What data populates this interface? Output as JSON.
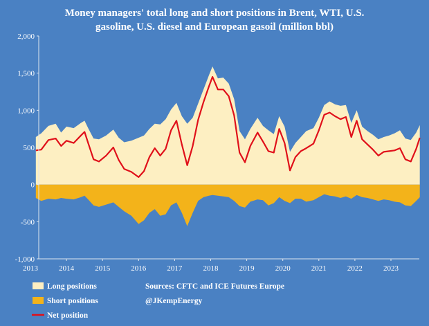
{
  "chart_data": {
    "type": "area",
    "title_lines": [
      "Money managers' total long and short positions in Brent, WTI, U.S.",
      "gasoline, U.S. diesel and European gasoil  (million bbl)"
    ],
    "xlabel": "",
    "ylabel": "",
    "xlim": [
      2013.0,
      2023.95
    ],
    "ylim": [
      -1000,
      2000
    ],
    "y_ticks": [
      "2,000",
      "1,500",
      "1,000",
      "500",
      "0",
      "-500",
      "-1,000"
    ],
    "x_ticks": [
      "2013",
      "2014",
      "2015",
      "2016",
      "2017",
      "2018",
      "2019",
      "2020",
      "2021",
      "2022",
      "2023"
    ],
    "grid": false,
    "legend_position": "bottom-left",
    "colors": {
      "background": "#4a81c3",
      "long": "#fdefc2",
      "short": "#f3b31a",
      "net": "#e0101a"
    },
    "series": [
      {
        "name": "Long positions",
        "style": "area",
        "points": [
          [
            2013.15,
            640
          ],
          [
            2013.3,
            690
          ],
          [
            2013.5,
            790
          ],
          [
            2013.7,
            820
          ],
          [
            2013.85,
            700
          ],
          [
            2014.0,
            780
          ],
          [
            2014.2,
            760
          ],
          [
            2014.4,
            830
          ],
          [
            2014.5,
            860
          ],
          [
            2014.6,
            760
          ],
          [
            2014.75,
            620
          ],
          [
            2014.9,
            610
          ],
          [
            2015.1,
            660
          ],
          [
            2015.3,
            740
          ],
          [
            2015.45,
            630
          ],
          [
            2015.6,
            570
          ],
          [
            2015.8,
            590
          ],
          [
            2016.0,
            630
          ],
          [
            2016.15,
            660
          ],
          [
            2016.3,
            750
          ],
          [
            2016.45,
            820
          ],
          [
            2016.6,
            810
          ],
          [
            2016.75,
            880
          ],
          [
            2016.9,
            1010
          ],
          [
            2017.05,
            1100
          ],
          [
            2017.2,
            920
          ],
          [
            2017.35,
            820
          ],
          [
            2017.5,
            900
          ],
          [
            2017.65,
            1090
          ],
          [
            2017.8,
            1280
          ],
          [
            2017.95,
            1470
          ],
          [
            2018.05,
            1590
          ],
          [
            2018.2,
            1430
          ],
          [
            2018.35,
            1440
          ],
          [
            2018.5,
            1360
          ],
          [
            2018.65,
            1150
          ],
          [
            2018.8,
            720
          ],
          [
            2018.95,
            610
          ],
          [
            2019.1,
            750
          ],
          [
            2019.3,
            900
          ],
          [
            2019.45,
            790
          ],
          [
            2019.6,
            730
          ],
          [
            2019.75,
            680
          ],
          [
            2019.9,
            920
          ],
          [
            2020.05,
            780
          ],
          [
            2020.2,
            440
          ],
          [
            2020.35,
            560
          ],
          [
            2020.5,
            640
          ],
          [
            2020.65,
            720
          ],
          [
            2020.85,
            760
          ],
          [
            2021.0,
            900
          ],
          [
            2021.15,
            1070
          ],
          [
            2021.3,
            1120
          ],
          [
            2021.45,
            1080
          ],
          [
            2021.6,
            1060
          ],
          [
            2021.75,
            1070
          ],
          [
            2021.9,
            830
          ],
          [
            2022.05,
            1000
          ],
          [
            2022.2,
            780
          ],
          [
            2022.35,
            720
          ],
          [
            2022.5,
            670
          ],
          [
            2022.65,
            610
          ],
          [
            2022.8,
            640
          ],
          [
            2022.95,
            660
          ],
          [
            2023.1,
            690
          ],
          [
            2023.25,
            730
          ],
          [
            2023.4,
            620
          ],
          [
            2023.55,
            600
          ],
          [
            2023.7,
            700
          ],
          [
            2023.8,
            800
          ]
        ]
      },
      {
        "name": "Short positions",
        "style": "area",
        "points": [
          [
            2013.15,
            -180
          ],
          [
            2013.3,
            -220
          ],
          [
            2013.5,
            -190
          ],
          [
            2013.7,
            -200
          ],
          [
            2013.85,
            -180
          ],
          [
            2014.0,
            -190
          ],
          [
            2014.2,
            -200
          ],
          [
            2014.4,
            -170
          ],
          [
            2014.5,
            -150
          ],
          [
            2014.6,
            -200
          ],
          [
            2014.75,
            -280
          ],
          [
            2014.9,
            -300
          ],
          [
            2015.1,
            -270
          ],
          [
            2015.3,
            -240
          ],
          [
            2015.45,
            -300
          ],
          [
            2015.6,
            -360
          ],
          [
            2015.8,
            -420
          ],
          [
            2016.0,
            -530
          ],
          [
            2016.15,
            -480
          ],
          [
            2016.3,
            -380
          ],
          [
            2016.45,
            -330
          ],
          [
            2016.6,
            -420
          ],
          [
            2016.75,
            -400
          ],
          [
            2016.9,
            -280
          ],
          [
            2017.05,
            -240
          ],
          [
            2017.2,
            -380
          ],
          [
            2017.35,
            -560
          ],
          [
            2017.5,
            -380
          ],
          [
            2017.65,
            -220
          ],
          [
            2017.8,
            -170
          ],
          [
            2017.95,
            -150
          ],
          [
            2018.05,
            -140
          ],
          [
            2018.2,
            -150
          ],
          [
            2018.35,
            -160
          ],
          [
            2018.5,
            -170
          ],
          [
            2018.65,
            -220
          ],
          [
            2018.8,
            -290
          ],
          [
            2018.95,
            -310
          ],
          [
            2019.1,
            -230
          ],
          [
            2019.3,
            -200
          ],
          [
            2019.45,
            -210
          ],
          [
            2019.6,
            -280
          ],
          [
            2019.75,
            -250
          ],
          [
            2019.9,
            -170
          ],
          [
            2020.05,
            -220
          ],
          [
            2020.2,
            -250
          ],
          [
            2020.35,
            -190
          ],
          [
            2020.5,
            -190
          ],
          [
            2020.65,
            -230
          ],
          [
            2020.85,
            -210
          ],
          [
            2021.0,
            -170
          ],
          [
            2021.15,
            -130
          ],
          [
            2021.3,
            -150
          ],
          [
            2021.45,
            -160
          ],
          [
            2021.6,
            -180
          ],
          [
            2021.75,
            -160
          ],
          [
            2021.9,
            -190
          ],
          [
            2022.05,
            -140
          ],
          [
            2022.2,
            -170
          ],
          [
            2022.35,
            -180
          ],
          [
            2022.5,
            -200
          ],
          [
            2022.65,
            -220
          ],
          [
            2022.8,
            -200
          ],
          [
            2022.95,
            -210
          ],
          [
            2023.1,
            -230
          ],
          [
            2023.25,
            -240
          ],
          [
            2023.4,
            -280
          ],
          [
            2023.55,
            -290
          ],
          [
            2023.7,
            -220
          ],
          [
            2023.8,
            -170
          ]
        ]
      },
      {
        "name": "Net position",
        "style": "line",
        "points": [
          [
            2013.15,
            460
          ],
          [
            2013.3,
            470
          ],
          [
            2013.5,
            600
          ],
          [
            2013.7,
            620
          ],
          [
            2013.85,
            520
          ],
          [
            2014.0,
            590
          ],
          [
            2014.2,
            560
          ],
          [
            2014.4,
            660
          ],
          [
            2014.5,
            710
          ],
          [
            2014.6,
            560
          ],
          [
            2014.75,
            340
          ],
          [
            2014.9,
            310
          ],
          [
            2015.1,
            390
          ],
          [
            2015.3,
            500
          ],
          [
            2015.45,
            330
          ],
          [
            2015.6,
            210
          ],
          [
            2015.8,
            170
          ],
          [
            2016.0,
            100
          ],
          [
            2016.15,
            180
          ],
          [
            2016.3,
            370
          ],
          [
            2016.45,
            490
          ],
          [
            2016.6,
            390
          ],
          [
            2016.75,
            480
          ],
          [
            2016.9,
            730
          ],
          [
            2017.05,
            860
          ],
          [
            2017.2,
            540
          ],
          [
            2017.35,
            260
          ],
          [
            2017.5,
            520
          ],
          [
            2017.65,
            870
          ],
          [
            2017.8,
            1110
          ],
          [
            2017.95,
            1320
          ],
          [
            2018.05,
            1450
          ],
          [
            2018.2,
            1280
          ],
          [
            2018.35,
            1280
          ],
          [
            2018.5,
            1190
          ],
          [
            2018.65,
            930
          ],
          [
            2018.8,
            430
          ],
          [
            2018.95,
            300
          ],
          [
            2019.1,
            520
          ],
          [
            2019.3,
            700
          ],
          [
            2019.45,
            580
          ],
          [
            2019.6,
            450
          ],
          [
            2019.75,
            430
          ],
          [
            2019.9,
            750
          ],
          [
            2020.05,
            560
          ],
          [
            2020.2,
            190
          ],
          [
            2020.35,
            370
          ],
          [
            2020.5,
            450
          ],
          [
            2020.65,
            490
          ],
          [
            2020.85,
            550
          ],
          [
            2021.0,
            730
          ],
          [
            2021.15,
            940
          ],
          [
            2021.3,
            970
          ],
          [
            2021.45,
            920
          ],
          [
            2021.6,
            880
          ],
          [
            2021.75,
            910
          ],
          [
            2021.9,
            640
          ],
          [
            2022.05,
            860
          ],
          [
            2022.2,
            610
          ],
          [
            2022.35,
            540
          ],
          [
            2022.5,
            470
          ],
          [
            2022.65,
            390
          ],
          [
            2022.8,
            440
          ],
          [
            2022.95,
            450
          ],
          [
            2023.1,
            460
          ],
          [
            2023.25,
            490
          ],
          [
            2023.4,
            340
          ],
          [
            2023.55,
            310
          ],
          [
            2023.7,
            480
          ],
          [
            2023.8,
            630
          ]
        ]
      }
    ],
    "legend": [
      {
        "label": "Long positions",
        "kind": "swatch",
        "color": "#fdefc2"
      },
      {
        "label": "Short positions",
        "kind": "swatch",
        "color": "#f3b31a"
      },
      {
        "label": "Net position",
        "kind": "line",
        "color": "#e0101a"
      }
    ],
    "source_lines": [
      "Sources: CFTC and ICE Futures Europe",
      "@JKempEnergy"
    ]
  }
}
